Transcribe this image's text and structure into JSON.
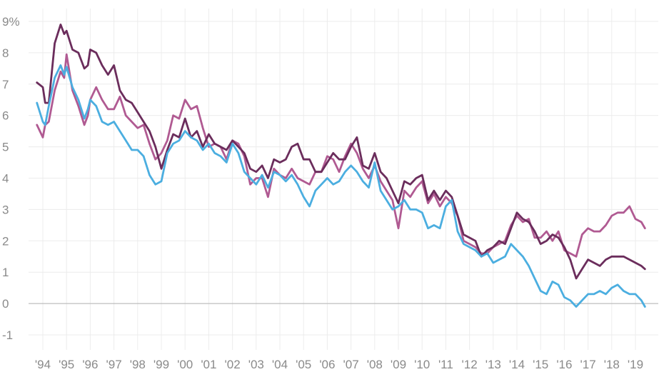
{
  "chart_data": {
    "type": "line",
    "title": "",
    "xlabel": "",
    "ylabel": "",
    "x_ticks": [
      "'94",
      "'95",
      "'96",
      "'97",
      "'98",
      "'99",
      "'00",
      "'01",
      "'02",
      "'03",
      "'04",
      "'05",
      "'06",
      "'07",
      "'08",
      "'09",
      "'10",
      "'11",
      "'12",
      "'13",
      "'14",
      "'15",
      "'16",
      "'17",
      "'18",
      "'19"
    ],
    "y_ticks": [
      "-1",
      "0",
      "1",
      "2",
      "3",
      "4",
      "5",
      "6",
      "7",
      "8",
      "9%"
    ],
    "ylim": [
      -1,
      9
    ],
    "xlim": [
      1993.6,
      2019.6
    ],
    "grid": true,
    "colors": {
      "dark_plum": "#6b2d5c",
      "magenta": "#b05a92",
      "sky_blue": "#4baee0",
      "zero_line": "#bdbdbd",
      "grid": "#ececec"
    },
    "series": [
      {
        "color": "#6b2d5c",
        "x": [
          1993.75,
          1994.0,
          1994.1,
          1994.25,
          1994.5,
          1994.75,
          1994.9,
          1995.0,
          1995.25,
          1995.5,
          1995.75,
          1995.9,
          1996.0,
          1996.25,
          1996.5,
          1996.75,
          1997.0,
          1997.25,
          1997.5,
          1997.75,
          1998.0,
          1998.25,
          1998.5,
          1998.75,
          1999.0,
          1999.25,
          1999.5,
          1999.75,
          2000.0,
          2000.25,
          2000.5,
          2000.75,
          2001.0,
          2001.25,
          2001.5,
          2001.75,
          2002.0,
          2002.25,
          2002.5,
          2002.75,
          2003.0,
          2003.25,
          2003.5,
          2003.75,
          2004.0,
          2004.25,
          2004.5,
          2004.75,
          2005.0,
          2005.25,
          2005.5,
          2005.75,
          2006.0,
          2006.25,
          2006.5,
          2006.75,
          2007.0,
          2007.25,
          2007.5,
          2007.75,
          2008.0,
          2008.25,
          2008.5,
          2008.75,
          2009.0,
          2009.25,
          2009.5,
          2009.75,
          2010.0,
          2010.25,
          2010.5,
          2010.75,
          2011.0,
          2011.25,
          2011.5,
          2011.75,
          2012.0,
          2012.25,
          2012.5,
          2012.75,
          2013.0,
          2013.25,
          2013.5,
          2013.75,
          2014.0,
          2014.25,
          2014.5,
          2014.75,
          2015.0,
          2015.25,
          2015.5,
          2015.75,
          2016.0,
          2016.25,
          2016.5,
          2016.75,
          2017.0,
          2017.25,
          2017.5,
          2017.75,
          2018.0,
          2018.25,
          2018.5,
          2018.75,
          2019.0,
          2019.25,
          2019.4
        ],
        "y": [
          7.05,
          6.9,
          6.4,
          6.4,
          8.3,
          8.9,
          8.6,
          8.7,
          8.1,
          8.0,
          7.5,
          7.6,
          8.1,
          8.0,
          7.6,
          7.3,
          7.6,
          6.8,
          6.5,
          6.4,
          6.1,
          5.8,
          5.5,
          5.0,
          4.3,
          4.9,
          5.4,
          5.3,
          5.9,
          5.3,
          5.5,
          5.0,
          5.4,
          5.1,
          5.0,
          4.9,
          5.2,
          5.0,
          4.8,
          4.3,
          4.2,
          4.4,
          4.0,
          4.6,
          4.5,
          4.6,
          5.0,
          5.1,
          4.6,
          4.6,
          4.2,
          4.2,
          4.5,
          4.8,
          4.6,
          4.6,
          5.0,
          5.3,
          4.4,
          4.3,
          4.8,
          4.2,
          4.0,
          3.6,
          3.2,
          3.9,
          3.8,
          4.0,
          4.1,
          3.3,
          3.6,
          3.3,
          3.6,
          3.4,
          2.8,
          2.2,
          2.1,
          2.0,
          1.5,
          1.7,
          1.8,
          2.0,
          1.9,
          2.4,
          2.9,
          2.7,
          2.6,
          2.3,
          1.9,
          2.0,
          2.2,
          2.1,
          1.8,
          1.4,
          0.8,
          1.1,
          1.4,
          1.3,
          1.2,
          1.4,
          1.5,
          1.5,
          1.5,
          1.4,
          1.3,
          1.2,
          1.1
        ],
        "values_note": ""
      },
      {
        "color": "#b05a92",
        "x": [
          1993.75,
          1994.0,
          1994.1,
          1994.25,
          1994.5,
          1994.75,
          1994.9,
          1995.0,
          1995.25,
          1995.5,
          1995.75,
          1995.9,
          1996.0,
          1996.25,
          1996.5,
          1996.75,
          1997.0,
          1997.25,
          1997.5,
          1997.75,
          1998.0,
          1998.25,
          1998.5,
          1998.75,
          1999.0,
          1999.25,
          1999.5,
          1999.75,
          2000.0,
          2000.25,
          2000.5,
          2000.75,
          2001.0,
          2001.25,
          2001.5,
          2001.75,
          2002.0,
          2002.25,
          2002.5,
          2002.75,
          2003.0,
          2003.25,
          2003.5,
          2003.75,
          2004.0,
          2004.25,
          2004.5,
          2004.75,
          2005.0,
          2005.25,
          2005.5,
          2005.75,
          2006.0,
          2006.25,
          2006.5,
          2006.75,
          2007.0,
          2007.25,
          2007.5,
          2007.75,
          2008.0,
          2008.25,
          2008.5,
          2008.75,
          2009.0,
          2009.25,
          2009.5,
          2009.75,
          2010.0,
          2010.25,
          2010.5,
          2010.75,
          2011.0,
          2011.25,
          2011.5,
          2011.75,
          2012.0,
          2012.25,
          2012.5,
          2012.75,
          2013.0,
          2013.25,
          2013.5,
          2013.75,
          2014.0,
          2014.25,
          2014.5,
          2014.75,
          2015.0,
          2015.25,
          2015.5,
          2015.75,
          2016.0,
          2016.25,
          2016.5,
          2016.75,
          2017.0,
          2017.25,
          2017.5,
          2017.75,
          2018.0,
          2018.25,
          2018.5,
          2018.75,
          2019.0,
          2019.25,
          2019.4
        ],
        "y": [
          5.7,
          5.3,
          5.7,
          5.8,
          6.8,
          7.4,
          7.2,
          7.95,
          6.8,
          6.3,
          5.7,
          6.0,
          6.5,
          6.9,
          6.5,
          6.2,
          6.2,
          6.6,
          6.0,
          5.8,
          5.6,
          5.7,
          5.1,
          4.6,
          4.8,
          5.2,
          6.0,
          5.9,
          6.5,
          6.2,
          6.3,
          5.6,
          5.0,
          5.1,
          5.0,
          4.6,
          5.2,
          5.1,
          4.7,
          3.8,
          4.0,
          4.0,
          3.4,
          4.3,
          4.1,
          4.0,
          4.3,
          4.0,
          3.9,
          3.8,
          4.2,
          4.2,
          4.7,
          4.6,
          4.2,
          4.7,
          5.1,
          4.8,
          4.3,
          4.0,
          4.4,
          3.9,
          3.6,
          3.3,
          2.4,
          3.6,
          3.4,
          3.7,
          3.9,
          3.2,
          3.5,
          3.1,
          3.4,
          3.2,
          2.8,
          2.0,
          1.9,
          1.8,
          1.6,
          1.6,
          1.8,
          1.9,
          2.0,
          2.5,
          2.8,
          2.6,
          2.7,
          2.1,
          2.1,
          2.3,
          2.0,
          2.3,
          1.7,
          1.6,
          1.5,
          2.2,
          2.4,
          2.3,
          2.3,
          2.5,
          2.8,
          2.9,
          2.9,
          3.1,
          2.7,
          2.6,
          2.4
        ],
        "values_note": ""
      },
      {
        "color": "#4baee0",
        "x": [
          1993.75,
          1994.0,
          1994.1,
          1994.25,
          1994.5,
          1994.75,
          1994.9,
          1995.0,
          1995.25,
          1995.5,
          1995.75,
          1995.9,
          1996.0,
          1996.25,
          1996.5,
          1996.75,
          1997.0,
          1997.25,
          1997.5,
          1997.75,
          1998.0,
          1998.25,
          1998.5,
          1998.75,
          1999.0,
          1999.25,
          1999.5,
          1999.75,
          2000.0,
          2000.25,
          2000.5,
          2000.75,
          2001.0,
          2001.25,
          2001.5,
          2001.75,
          2002.0,
          2002.25,
          2002.5,
          2002.75,
          2003.0,
          2003.25,
          2003.5,
          2003.75,
          2004.0,
          2004.25,
          2004.5,
          2004.75,
          2005.0,
          2005.25,
          2005.5,
          2005.75,
          2006.0,
          2006.25,
          2006.5,
          2006.75,
          2007.0,
          2007.25,
          2007.5,
          2007.75,
          2008.0,
          2008.25,
          2008.5,
          2008.75,
          2009.0,
          2009.25,
          2009.5,
          2009.75,
          2010.0,
          2010.25,
          2010.5,
          2010.75,
          2011.0,
          2011.25,
          2011.5,
          2011.75,
          2012.0,
          2012.25,
          2012.5,
          2012.75,
          2013.0,
          2013.25,
          2013.5,
          2013.75,
          2014.0,
          2014.25,
          2014.5,
          2014.75,
          2015.0,
          2015.25,
          2015.5,
          2015.75,
          2016.0,
          2016.25,
          2016.5,
          2016.75,
          2017.0,
          2017.25,
          2017.5,
          2017.75,
          2018.0,
          2018.25,
          2018.5,
          2018.75,
          2019.0,
          2019.25,
          2019.4
        ],
        "y": [
          6.4,
          5.8,
          5.7,
          6.3,
          7.2,
          7.6,
          7.3,
          7.55,
          6.9,
          6.5,
          5.9,
          6.2,
          6.5,
          6.3,
          5.8,
          5.7,
          5.8,
          5.5,
          5.2,
          4.9,
          4.9,
          4.7,
          4.1,
          3.8,
          3.9,
          4.8,
          5.1,
          5.2,
          5.5,
          5.3,
          5.2,
          4.9,
          5.1,
          4.8,
          4.7,
          4.5,
          5.1,
          4.8,
          4.2,
          4.0,
          3.8,
          4.1,
          3.7,
          4.2,
          4.1,
          3.9,
          4.1,
          3.8,
          3.4,
          3.1,
          3.6,
          3.8,
          4.0,
          3.8,
          3.9,
          4.2,
          4.4,
          4.2,
          3.9,
          3.7,
          4.5,
          3.6,
          3.3,
          3.0,
          3.1,
          3.3,
          3.0,
          3.0,
          2.9,
          2.4,
          2.5,
          2.4,
          3.1,
          3.3,
          2.3,
          1.9,
          1.8,
          1.7,
          1.5,
          1.6,
          1.3,
          1.4,
          1.5,
          1.9,
          1.7,
          1.5,
          1.2,
          0.8,
          0.4,
          0.3,
          0.7,
          0.6,
          0.2,
          0.1,
          -0.1,
          0.1,
          0.3,
          0.3,
          0.4,
          0.3,
          0.5,
          0.6,
          0.4,
          0.3,
          0.3,
          0.1,
          -0.1
        ],
        "values_note": ""
      }
    ]
  }
}
